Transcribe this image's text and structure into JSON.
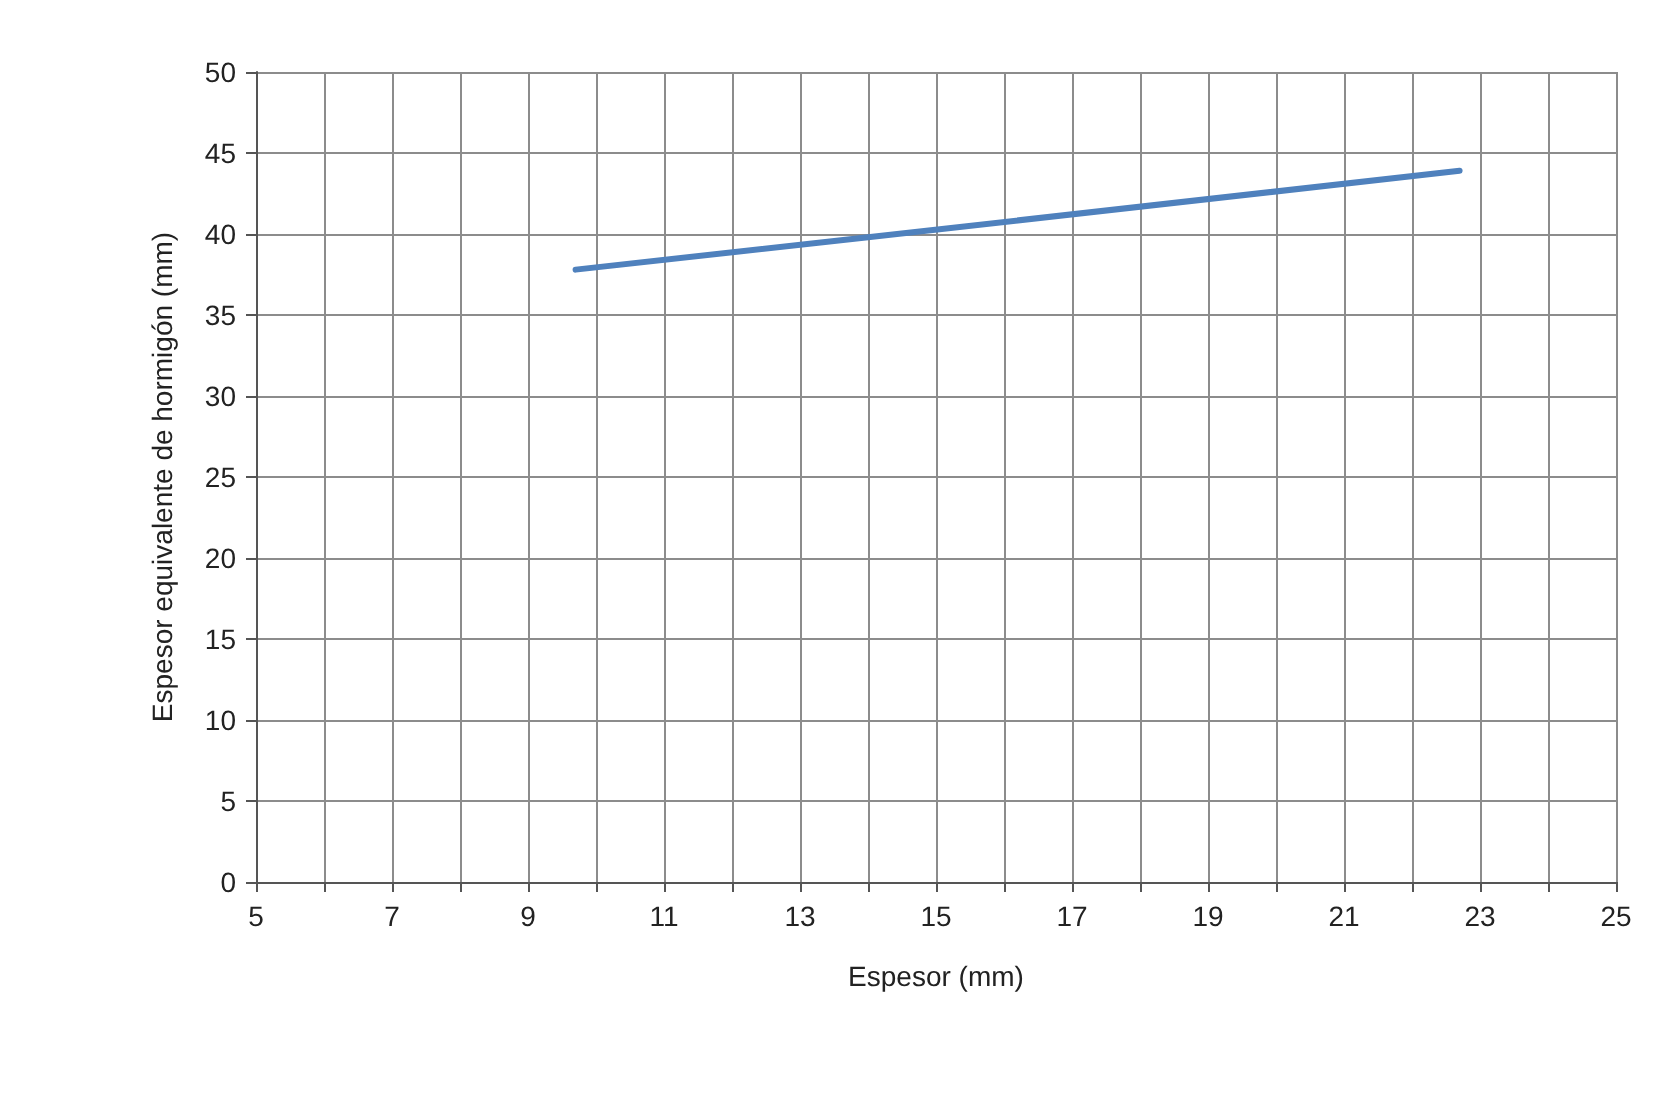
{
  "chart_data": {
    "type": "line",
    "xlabel": "Espesor (mm)",
    "ylabel": "Espesor equivalente de hormigón (mm)",
    "x": [
      9.7,
      14,
      22.7
    ],
    "series": [
      {
        "color": "#4f81bd",
        "values": [
          37.8,
          39.8,
          43.9
        ]
      }
    ],
    "xlim": [
      5,
      25
    ],
    "xticks": [
      5,
      {
        "value": 6,
        "label": null
      },
      7,
      {
        "value": 8,
        "label": null
      },
      9,
      {
        "value": 10,
        "label": null
      },
      11,
      {
        "value": 12,
        "label": null
      },
      13,
      {
        "value": 14,
        "label": null
      },
      15,
      {
        "value": 16,
        "label": null
      },
      17,
      {
        "value": 18,
        "label": null
      },
      19,
      {
        "value": 20,
        "label": null
      },
      21,
      {
        "value": 22,
        "label": null
      },
      23,
      {
        "value": 24,
        "label": null
      },
      25
    ],
    "ylim": [
      0,
      50
    ],
    "yticks": [
      0,
      5,
      10,
      15,
      20,
      25,
      30,
      35,
      40,
      45,
      50
    ],
    "grid": true,
    "marker": "none",
    "line_style": "solid"
  }
}
